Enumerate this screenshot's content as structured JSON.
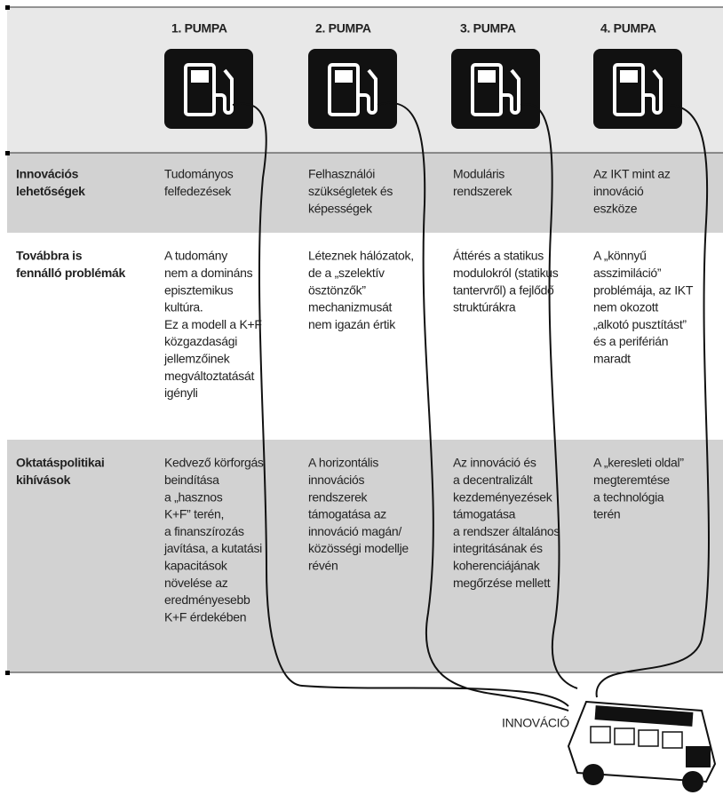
{
  "header": {
    "pumps": [
      "1. PUMPA",
      "2.  PUMPA",
      "3. PUMPA",
      "4. PUMPA"
    ]
  },
  "rows": [
    {
      "label": [
        "Innovációs",
        "lehetőségek"
      ],
      "cells": [
        [
          "Tudományos",
          "felfedezések"
        ],
        [
          "Felhasználói",
          "szükségletek és",
          "képességek"
        ],
        [
          "Moduláris",
          "rendszerek"
        ],
        [
          "Az IKT mint az",
          "innováció",
          "eszköze"
        ]
      ]
    },
    {
      "label": [
        "Továbbra is",
        "fennálló problémák"
      ],
      "cells": [
        [
          "A tudomány",
          "nem a domináns",
          "episztemikus",
          "kultúra.",
          "Ez a modell a K+F",
          "közgazdasági",
          "jellemzőinek",
          "megváltoztatását",
          "igényli"
        ],
        [
          "Léteznek hálózatok,",
          "de a „szelektív",
          "ösztönzők”",
          "mechanizmusát",
          "nem igazán értik"
        ],
        [
          "Áttérés a statikus",
          "modulokról (statikus",
          "tantervről) a fejlődő",
          "struktúrákra"
        ],
        [
          "A „könnyű",
          "asszimiláció”",
          "problémája, az IKT",
          "nem okozott",
          "„alkotó pusztítást”",
          "és a periférián",
          "maradt"
        ]
      ]
    },
    {
      "label": [
        "Oktatáspolitikai",
        "kihívások"
      ],
      "cells": [
        [
          "Kedvező körforgás",
          "beindítása",
          "a „hasznos",
          "K+F” terén,",
          "a finanszírozás",
          "javítása, a kutatási",
          "kapacitások",
          "növelése az",
          "eredményesebb",
          "K+F érdekében"
        ],
        [
          "A horizontális",
          "innovációs",
          "rendszerek",
          "támogatása az",
          "innováció magán/",
          "közösségi modellje",
          "révén"
        ],
        [
          "Az innováció és",
          "a decentralizált",
          "kezdeményezések",
          "támogatása",
          "a rendszer általános",
          "integritásának és",
          "koherenciájának",
          "megőrzése mellett"
        ],
        [
          "A „keresleti oldal”",
          "megteremtése",
          "a technológia",
          "terén"
        ]
      ]
    }
  ],
  "bus_label": "INNOVÁCIÓ"
}
